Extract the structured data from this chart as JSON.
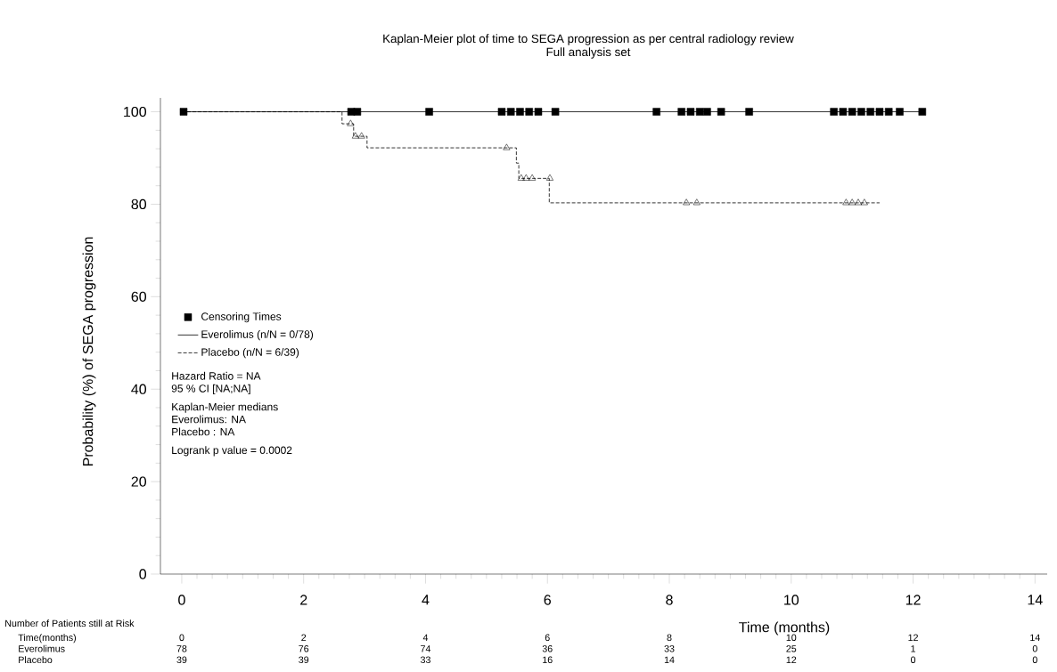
{
  "chart_data": {
    "type": "step",
    "title": "Kaplan-Meier plot of time to SEGA progression as per central radiology review",
    "subtitle": "Full analysis set",
    "xlabel": "Time (months)",
    "ylabel": "Probability (%) of SEGA progression",
    "xlim": [
      -0.35,
      14.2
    ],
    "ylim": [
      0,
      103
    ],
    "xticks": [
      0,
      2,
      4,
      6,
      8,
      10,
      12,
      14
    ],
    "yticks": [
      0,
      20,
      40,
      60,
      80,
      100
    ],
    "grid": false,
    "legend": "left",
    "series": [
      {
        "name": "Everolimus (n/N = 0/78)",
        "color": "#000000",
        "line_style": "solid",
        "marker": "none",
        "x": [
          0,
          12.15
        ],
        "values": [
          100,
          100
        ]
      },
      {
        "name": "Placebo (n/N = 6/39)",
        "color": "#000000",
        "line_style": "dashed",
        "marker": "none",
        "x": [
          0,
          2.63,
          2.82,
          3.04,
          5.49,
          5.53,
          6.03,
          11.45
        ],
        "values": [
          100,
          97.4,
          94.7,
          92.2,
          88.9,
          85.6,
          80.3,
          80.3
        ]
      },
      {
        "name": "Censoring Times",
        "type": "scatter",
        "color": "#000000",
        "marker": "square",
        "x": [
          0.03,
          2.78,
          2.88,
          4.06,
          5.25,
          5.4,
          5.55,
          5.7,
          5.85,
          6.13,
          7.79,
          8.2,
          8.35,
          8.5,
          8.62,
          8.85,
          9.31,
          10.7,
          10.85,
          11.0,
          11.15,
          11.3,
          11.45,
          11.6,
          11.78,
          12.15
        ],
        "values": [
          100,
          100,
          100,
          100,
          100,
          100,
          100,
          100,
          100,
          100,
          100,
          100,
          100,
          100,
          100,
          100,
          100,
          100,
          100,
          100,
          100,
          100,
          100,
          100,
          100,
          100
        ]
      },
      {
        "type": "scatter",
        "color": "#000000",
        "marker": "triangle",
        "x": [
          2.77,
          2.85,
          2.95,
          5.33,
          5.57,
          5.65,
          5.75,
          6.04,
          8.28,
          8.45,
          10.9,
          11.0,
          11.1,
          11.2
        ],
        "values": [
          97.4,
          94.7,
          94.7,
          92.2,
          85.6,
          85.6,
          85.6,
          85.6,
          80.3,
          80.3,
          80.3,
          80.3,
          80.3,
          80.3
        ]
      }
    ],
    "annotations": [
      "Hazard Ratio = NA",
      "95 % CI [NA;NA]",
      "Kaplan-Meier medians",
      "Everolimus: NA",
      "Placebo : NA",
      "Logrank p value = 0.0002",
      "Number of Patients still at Risk",
      "Time(months)",
      "Everolimus",
      "Placebo",
      "0",
      "2",
      "4",
      "6",
      "8",
      "10",
      "12",
      "14",
      "78",
      "76",
      "74",
      "36",
      "33",
      "25",
      "1",
      "0",
      "39",
      "39",
      "33",
      "16",
      "14",
      "12",
      "0",
      "0"
    ]
  }
}
